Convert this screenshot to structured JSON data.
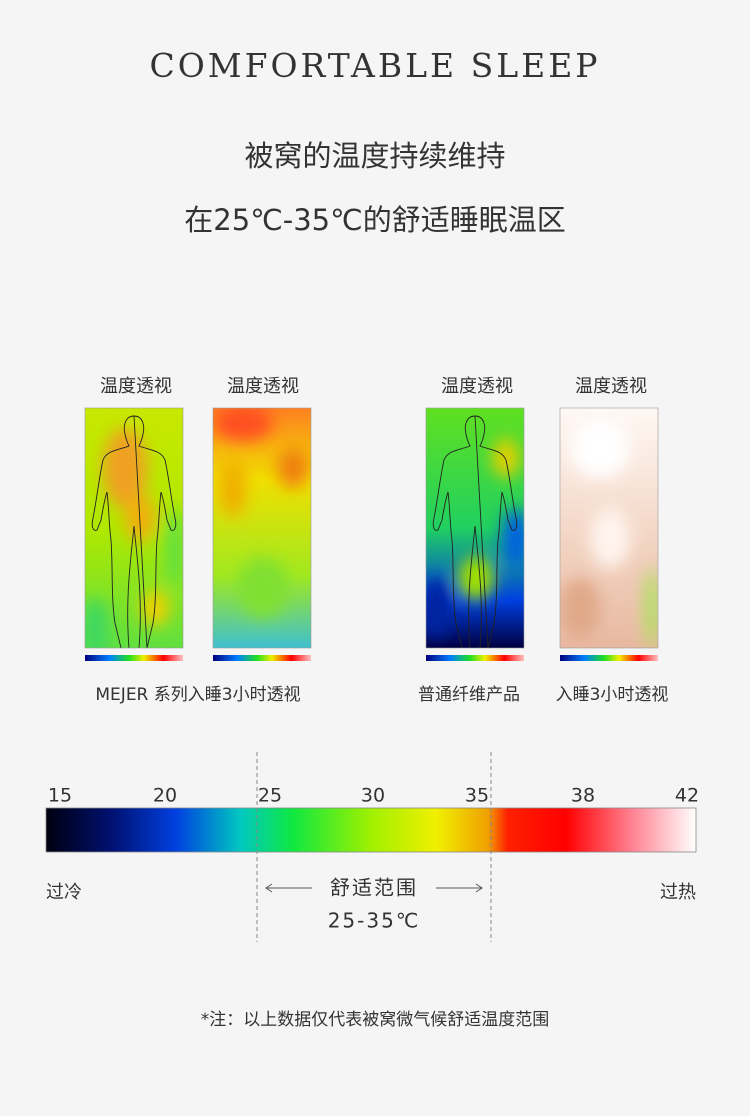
{
  "title": "COMFORTABLE SLEEP",
  "headline": [
    "被窝的温度持续维持",
    "在25℃-35℃的舒适睡眠温区"
  ],
  "panels": [
    {
      "label": "温度透视"
    },
    {
      "label": "温度透视"
    },
    {
      "label": "温度透视"
    },
    {
      "label": "温度透视"
    }
  ],
  "captions": [
    "MEJER 系列入睡3小时透视",
    "普通纤维产品",
    "入睡3小时透视"
  ],
  "scale": {
    "ticks": [
      15,
      20,
      25,
      30,
      35,
      38,
      42
    ],
    "cold": "过冷",
    "hot": "过热",
    "comfort": "舒适范围",
    "comfort_range": "25-35℃"
  },
  "note": "*注：以上数据仅代表被窝微气候舒适温度范围"
}
